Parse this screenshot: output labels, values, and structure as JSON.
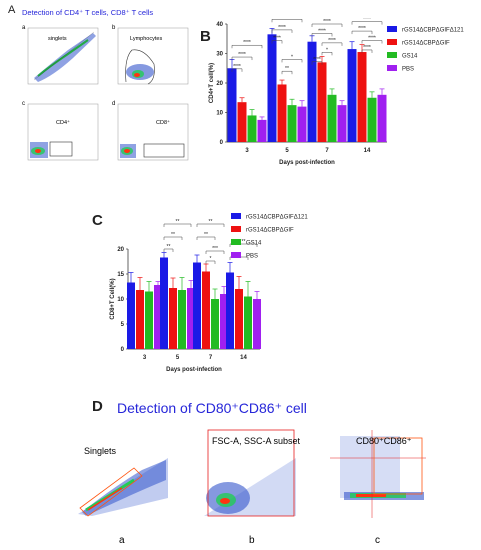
{
  "panel_a_section": {
    "letter": "A",
    "title": "Detection of CD4⁺ T cells, CD8⁺ T cells",
    "sublabels": [
      "a",
      "b",
      "c",
      "d"
    ],
    "gate_labels": [
      "singlets",
      "Lymphocytes",
      "CD4⁺",
      "CD8⁺"
    ]
  },
  "panel_b_section": {
    "letter": "B"
  },
  "panel_c_section": {
    "letter": "C"
  },
  "panel_d_section": {
    "letter": "D",
    "title": "Detection of CD80⁺CD86⁺ cell",
    "sublabels": [
      "a",
      "b",
      "c"
    ],
    "gate_labels": [
      "Singlets",
      "FSC-A, SSC-A subset",
      "CD80⁺CD86⁺"
    ]
  },
  "colors": {
    "rGS14ΔCBPΔGIFΔ121": "#1a1ae6",
    "rGS14ΔCBPΔGIF": "#ee1111",
    "GS14": "#22bb22",
    "PBS": "#a020f0",
    "title_blue": "#2626d9",
    "gate_orange": "#ff5511",
    "gate_red": "#e61e1e"
  },
  "chart_data": [
    {
      "id": "B",
      "type": "bar",
      "categories": [
        "3",
        "5",
        "7",
        "14"
      ],
      "xlabel": "Days post-infection",
      "ylabel": "CD4+T cell(%)",
      "ylim": [
        0,
        40
      ],
      "yticks": [
        "0",
        "10",
        "20",
        "30",
        "40"
      ],
      "legend_position": "top-right",
      "series": [
        {
          "name": "rGS14ΔCBPΔGIFΔ121",
          "values": [
            25,
            36.5,
            34,
            31.5
          ],
          "errors": [
            3,
            2,
            2,
            2.5
          ]
        },
        {
          "name": "rGS14ΔCBPΔGIF",
          "values": [
            13.5,
            19.5,
            27,
            30.5
          ],
          "errors": [
            1.5,
            1.5,
            2,
            2.5
          ]
        },
        {
          "name": "GS14",
          "values": [
            9,
            12.5,
            16,
            15
          ],
          "errors": [
            2,
            2,
            2,
            2
          ]
        },
        {
          "name": "PBS",
          "values": [
            7.5,
            12,
            12.5,
            16
          ],
          "errors": [
            1,
            2,
            1.5,
            2
          ]
        }
      ],
      "significance_labels": [
        "****",
        "****",
        "****",
        "****",
        "****",
        "****",
        "*",
        "**",
        "****",
        "****",
        "****",
        "*",
        "****",
        "****",
        "****",
        "****",
        "****",
        "****",
        "****"
      ]
    },
    {
      "id": "C",
      "type": "bar",
      "categories": [
        "3",
        "5",
        "7",
        "14"
      ],
      "xlabel": "Days post-infection",
      "ylabel": "CD8+T Cell(%)",
      "ylim": [
        0,
        20
      ],
      "yticks": [
        "0",
        "5",
        "10",
        "15",
        "20"
      ],
      "legend_position": "top-right",
      "series": [
        {
          "name": "rGS14ΔCBPΔGIFΔ121",
          "values": [
            13.3,
            18.3,
            17.3,
            15.3
          ],
          "errors": [
            2,
            1,
            1.5,
            2
          ]
        },
        {
          "name": "rGS14ΔCBPΔGIF",
          "values": [
            11.8,
            12.2,
            15.5,
            12
          ],
          "errors": [
            2.5,
            2,
            1.5,
            2.5
          ]
        },
        {
          "name": "GS14",
          "values": [
            11.5,
            11.8,
            10,
            10.5
          ],
          "errors": [
            2,
            2.5,
            2,
            3
          ]
        },
        {
          "name": "PBS",
          "values": [
            12.8,
            12.2,
            11,
            10
          ],
          "errors": [
            0.7,
            1.5,
            1.5,
            1.5
          ]
        }
      ],
      "significance_labels": [
        "**",
        "**",
        "**",
        "**",
        "**",
        "***",
        "*",
        "**",
        "*",
        "*"
      ]
    }
  ]
}
